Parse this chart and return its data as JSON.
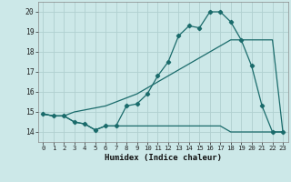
{
  "xlabel": "Humidex (Indice chaleur)",
  "bg_color": "#cce8e8",
  "grid_color": "#b0d0d0",
  "line_color": "#1a6b6b",
  "xlim": [
    -0.5,
    23.5
  ],
  "ylim": [
    13.5,
    20.5
  ],
  "xticks": [
    0,
    1,
    2,
    3,
    4,
    5,
    6,
    7,
    8,
    9,
    10,
    11,
    12,
    13,
    14,
    15,
    16,
    17,
    18,
    19,
    20,
    21,
    22,
    23
  ],
  "yticks": [
    14,
    15,
    16,
    17,
    18,
    19,
    20
  ],
  "line1_marked": {
    "x": [
      0,
      1,
      2,
      3,
      4,
      5,
      6,
      7,
      8,
      9,
      10,
      11,
      12,
      13,
      14,
      15,
      16,
      17,
      18,
      19,
      20,
      21,
      22,
      23
    ],
    "y": [
      14.9,
      14.8,
      14.8,
      14.5,
      14.4,
      14.1,
      14.3,
      14.3,
      15.3,
      15.4,
      15.9,
      16.8,
      17.5,
      18.8,
      19.3,
      19.2,
      20.0,
      20.0,
      19.5,
      18.6,
      17.3,
      15.3,
      14.0,
      14.0
    ]
  },
  "line2_diagonal": {
    "x": [
      0,
      1,
      2,
      3,
      4,
      5,
      6,
      7,
      8,
      9,
      10,
      11,
      12,
      13,
      14,
      15,
      16,
      17,
      18,
      19,
      20,
      21,
      22,
      23
    ],
    "y": [
      14.9,
      14.8,
      14.8,
      15.0,
      15.1,
      15.2,
      15.3,
      15.5,
      15.7,
      15.9,
      16.2,
      16.5,
      16.8,
      17.1,
      17.4,
      17.7,
      18.0,
      18.3,
      18.6,
      18.6,
      18.6,
      18.6,
      18.6,
      14.0
    ]
  },
  "line3_flat": {
    "x": [
      0,
      1,
      2,
      3,
      4,
      5,
      6,
      7,
      8,
      9,
      10,
      11,
      12,
      13,
      14,
      15,
      16,
      17,
      18,
      19,
      20,
      21,
      22,
      23
    ],
    "y": [
      14.9,
      14.8,
      14.8,
      14.5,
      14.4,
      14.1,
      14.3,
      14.3,
      14.3,
      14.3,
      14.3,
      14.3,
      14.3,
      14.3,
      14.3,
      14.3,
      14.3,
      14.3,
      14.0,
      14.0,
      14.0,
      14.0,
      14.0,
      14.0
    ]
  }
}
